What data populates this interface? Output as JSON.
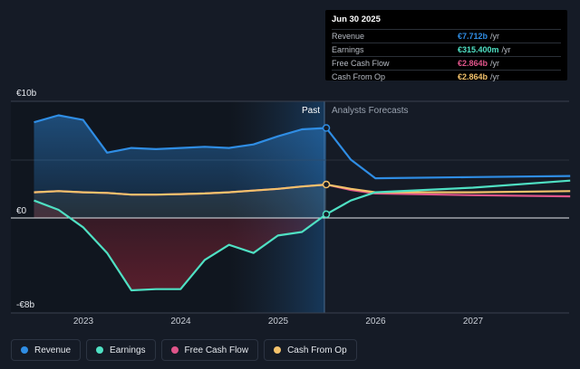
{
  "chart_data": {
    "type": "area",
    "y_unit": "€",
    "ylim": [
      -8,
      10
    ],
    "y_ticks": [
      {
        "label": "€10b",
        "value": 10
      },
      {
        "label": "€0",
        "value": 0
      },
      {
        "label": "-€8b",
        "value": -8
      }
    ],
    "x_ticks": [
      "2023",
      "2024",
      "2025",
      "2026",
      "2027"
    ],
    "past_label": "Past",
    "forecast_label": "Analysts Forecasts",
    "divider_date": "2025-06-30",
    "series": [
      {
        "name": "Revenue",
        "color": "#2f8de4",
        "points": [
          [
            "2022-06-30",
            8.2
          ],
          [
            "2022-09-30",
            8.8
          ],
          [
            "2022-12-31",
            8.4
          ],
          [
            "2023-03-31",
            5.6
          ],
          [
            "2023-06-30",
            6.0
          ],
          [
            "2023-09-30",
            5.9
          ],
          [
            "2023-12-31",
            6.0
          ],
          [
            "2024-03-31",
            6.1
          ],
          [
            "2024-06-30",
            6.0
          ],
          [
            "2024-09-30",
            6.3
          ],
          [
            "2024-12-31",
            7.0
          ],
          [
            "2025-03-31",
            7.6
          ],
          [
            "2025-06-30",
            7.712
          ],
          [
            "2025-09-30",
            5.0
          ],
          [
            "2025-12-31",
            3.4
          ],
          [
            "2026-12-31",
            3.5
          ],
          [
            "2027-12-31",
            3.6
          ]
        ]
      },
      {
        "name": "Earnings",
        "color": "#4fe0c3",
        "points": [
          [
            "2022-06-30",
            1.5
          ],
          [
            "2022-09-30",
            0.7
          ],
          [
            "2022-12-31",
            -0.8
          ],
          [
            "2023-03-31",
            -3.0
          ],
          [
            "2023-06-30",
            -6.2
          ],
          [
            "2023-09-30",
            -6.1
          ],
          [
            "2023-12-31",
            -6.1
          ],
          [
            "2024-03-31",
            -3.6
          ],
          [
            "2024-06-30",
            -2.3
          ],
          [
            "2024-09-30",
            -3.0
          ],
          [
            "2024-12-31",
            -1.5
          ],
          [
            "2025-03-31",
            -1.2
          ],
          [
            "2025-06-30",
            0.315
          ],
          [
            "2025-09-30",
            1.5
          ],
          [
            "2025-12-31",
            2.2
          ],
          [
            "2026-12-31",
            2.6
          ],
          [
            "2027-12-31",
            3.2
          ]
        ]
      },
      {
        "name": "Free Cash Flow",
        "color": "#e0558a",
        "points": [
          [
            "2022-06-30",
            2.2
          ],
          [
            "2022-09-30",
            2.3
          ],
          [
            "2022-12-31",
            2.2
          ],
          [
            "2023-03-31",
            2.15
          ],
          [
            "2023-06-30",
            2.0
          ],
          [
            "2023-09-30",
            2.0
          ],
          [
            "2023-12-31",
            2.05
          ],
          [
            "2024-03-31",
            2.1
          ],
          [
            "2024-06-30",
            2.2
          ],
          [
            "2024-09-30",
            2.35
          ],
          [
            "2024-12-31",
            2.5
          ],
          [
            "2025-03-31",
            2.7
          ],
          [
            "2025-06-30",
            2.864
          ],
          [
            "2025-09-30",
            2.4
          ],
          [
            "2025-12-31",
            2.1
          ],
          [
            "2026-12-31",
            1.95
          ],
          [
            "2027-12-31",
            1.85
          ]
        ]
      },
      {
        "name": "Cash From Op",
        "color": "#f3c26b",
        "points": [
          [
            "2022-06-30",
            2.2
          ],
          [
            "2022-09-30",
            2.3
          ],
          [
            "2022-12-31",
            2.2
          ],
          [
            "2023-03-31",
            2.15
          ],
          [
            "2023-06-30",
            2.0
          ],
          [
            "2023-09-30",
            2.0
          ],
          [
            "2023-12-31",
            2.05
          ],
          [
            "2024-03-31",
            2.1
          ],
          [
            "2024-06-30",
            2.2
          ],
          [
            "2024-09-30",
            2.35
          ],
          [
            "2024-12-31",
            2.5
          ],
          [
            "2025-03-31",
            2.7
          ],
          [
            "2025-06-30",
            2.864
          ],
          [
            "2025-09-30",
            2.5
          ],
          [
            "2025-12-31",
            2.2
          ],
          [
            "2026-12-31",
            2.2
          ],
          [
            "2027-12-31",
            2.3
          ]
        ]
      }
    ]
  },
  "tooltip": {
    "date": "Jun 30 2025",
    "rows": [
      {
        "label": "Revenue",
        "value": "€7.712b",
        "unit": "/yr",
        "color": "#2f8de4"
      },
      {
        "label": "Earnings",
        "value": "€315.400m",
        "unit": "/yr",
        "color": "#4fe0c3"
      },
      {
        "label": "Free Cash Flow",
        "value": "€2.864b",
        "unit": "/yr",
        "color": "#e0558a"
      },
      {
        "label": "Cash From Op",
        "value": "€2.864b",
        "unit": "/yr",
        "color": "#f3c26b"
      }
    ]
  },
  "legend": [
    {
      "label": "Revenue",
      "color": "#2f8de4"
    },
    {
      "label": "Earnings",
      "color": "#4fe0c3"
    },
    {
      "label": "Free Cash Flow",
      "color": "#e0558a"
    },
    {
      "label": "Cash From Op",
      "color": "#f3c26b"
    }
  ]
}
